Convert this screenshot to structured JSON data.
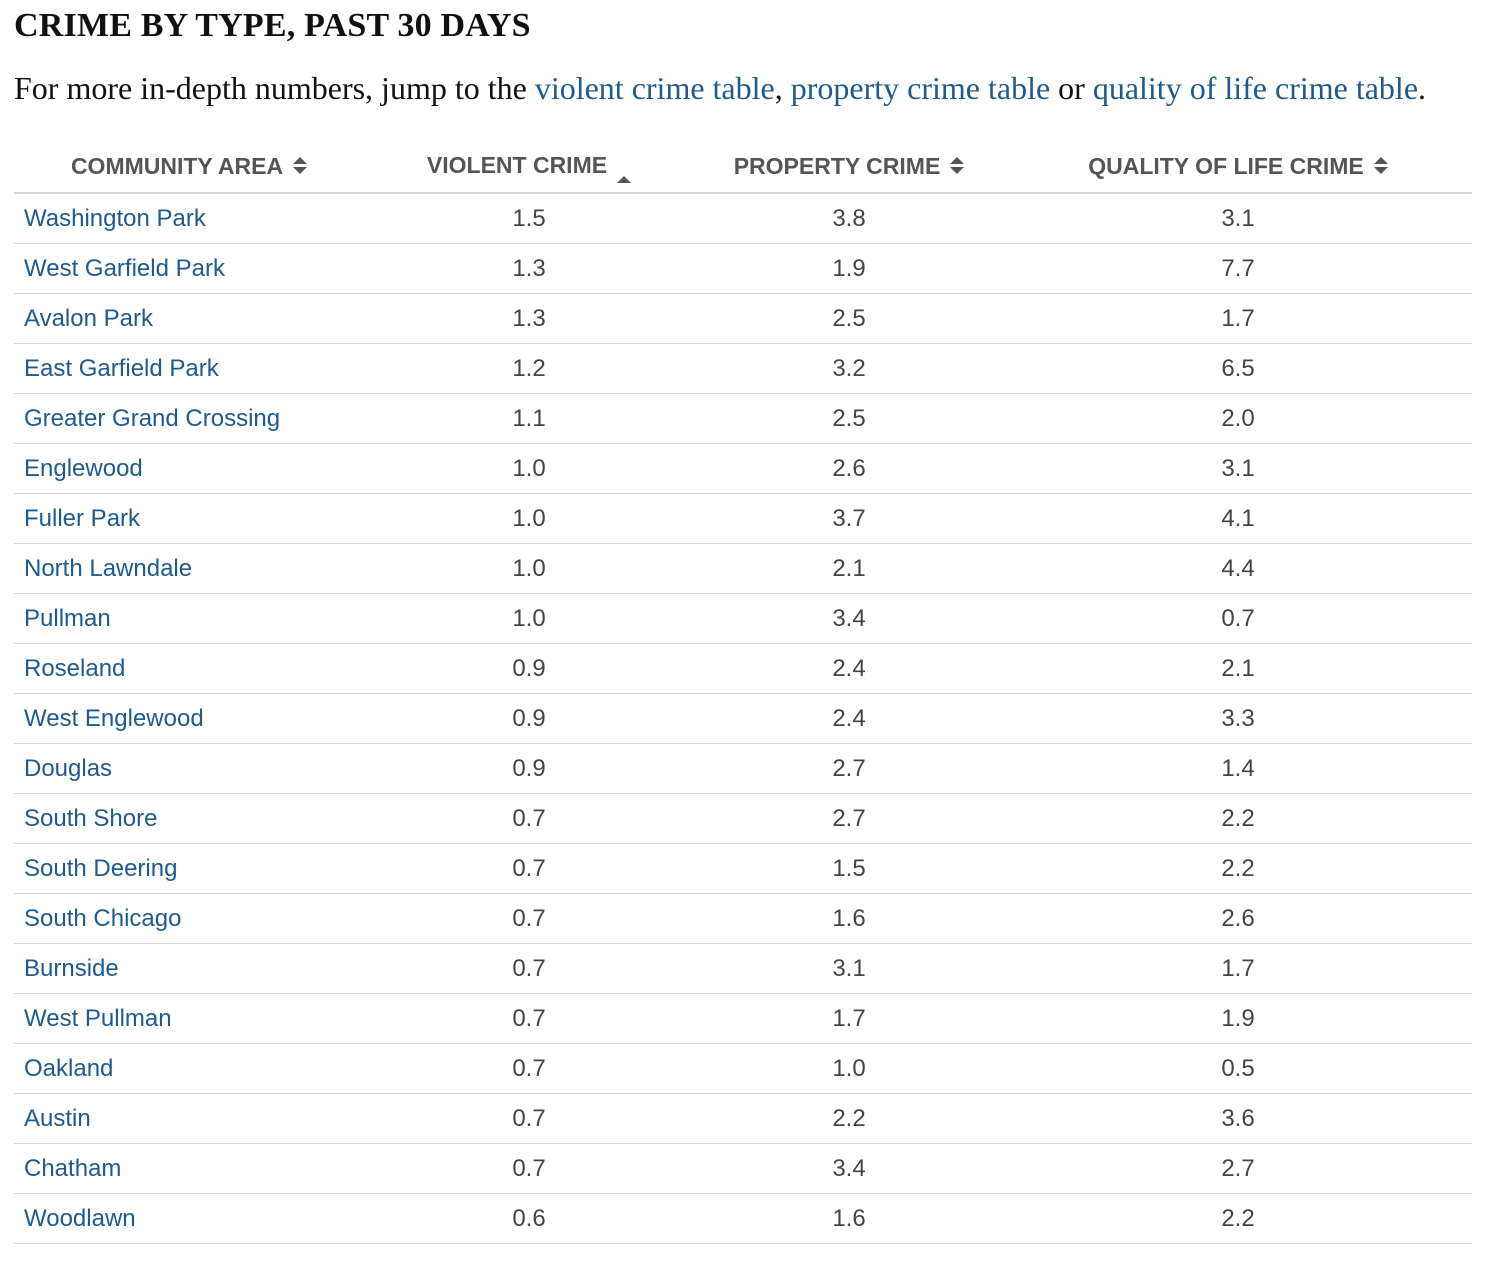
{
  "title": "CRIME BY TYPE, PAST 30 DAYS",
  "intro": {
    "prefix": "For more in-depth numbers, jump to the ",
    "link_violent": "violent crime table",
    "sep1": ", ",
    "link_property": "property crime table",
    "sep2": " or ",
    "link_quality": "quality of life crime table",
    "suffix": "."
  },
  "table": {
    "headers": {
      "community_area": "COMMUNITY AREA",
      "violent_crime": "VIOLENT CRIME",
      "property_crime": "PROPERTY CRIME",
      "quality_of_life_crime": "QUALITY OF LIFE CRIME"
    },
    "sort": {
      "column": "violent_crime",
      "direction": "descending"
    },
    "rows": [
      {
        "area": "Washington Park",
        "violent": "1.5",
        "property": "3.8",
        "quality": "3.1"
      },
      {
        "area": "West Garfield Park",
        "violent": "1.3",
        "property": "1.9",
        "quality": "7.7"
      },
      {
        "area": "Avalon Park",
        "violent": "1.3",
        "property": "2.5",
        "quality": "1.7"
      },
      {
        "area": "East Garfield Park",
        "violent": "1.2",
        "property": "3.2",
        "quality": "6.5"
      },
      {
        "area": "Greater Grand Crossing",
        "violent": "1.1",
        "property": "2.5",
        "quality": "2.0"
      },
      {
        "area": "Englewood",
        "violent": "1.0",
        "property": "2.6",
        "quality": "3.1"
      },
      {
        "area": "Fuller Park",
        "violent": "1.0",
        "property": "3.7",
        "quality": "4.1"
      },
      {
        "area": "North Lawndale",
        "violent": "1.0",
        "property": "2.1",
        "quality": "4.4"
      },
      {
        "area": "Pullman",
        "violent": "1.0",
        "property": "3.4",
        "quality": "0.7"
      },
      {
        "area": "Roseland",
        "violent": "0.9",
        "property": "2.4",
        "quality": "2.1"
      },
      {
        "area": "West Englewood",
        "violent": "0.9",
        "property": "2.4",
        "quality": "3.3"
      },
      {
        "area": "Douglas",
        "violent": "0.9",
        "property": "2.7",
        "quality": "1.4"
      },
      {
        "area": "South Shore",
        "violent": "0.7",
        "property": "2.7",
        "quality": "2.2"
      },
      {
        "area": "South Deering",
        "violent": "0.7",
        "property": "1.5",
        "quality": "2.2"
      },
      {
        "area": "South Chicago",
        "violent": "0.7",
        "property": "1.6",
        "quality": "2.6"
      },
      {
        "area": "Burnside",
        "violent": "0.7",
        "property": "3.1",
        "quality": "1.7"
      },
      {
        "area": "West Pullman",
        "violent": "0.7",
        "property": "1.7",
        "quality": "1.9"
      },
      {
        "area": "Oakland",
        "violent": "0.7",
        "property": "1.0",
        "quality": "0.5"
      },
      {
        "area": "Austin",
        "violent": "0.7",
        "property": "2.2",
        "quality": "3.6"
      },
      {
        "area": "Chatham",
        "violent": "0.7",
        "property": "3.4",
        "quality": "2.7"
      },
      {
        "area": "Woodlawn",
        "violent": "0.6",
        "property": "1.6",
        "quality": "2.2"
      }
    ]
  },
  "colors": {
    "link": "#1f5a8c",
    "header_text": "#555555",
    "cell_text": "#444444",
    "rule": "#d8d8d8"
  }
}
